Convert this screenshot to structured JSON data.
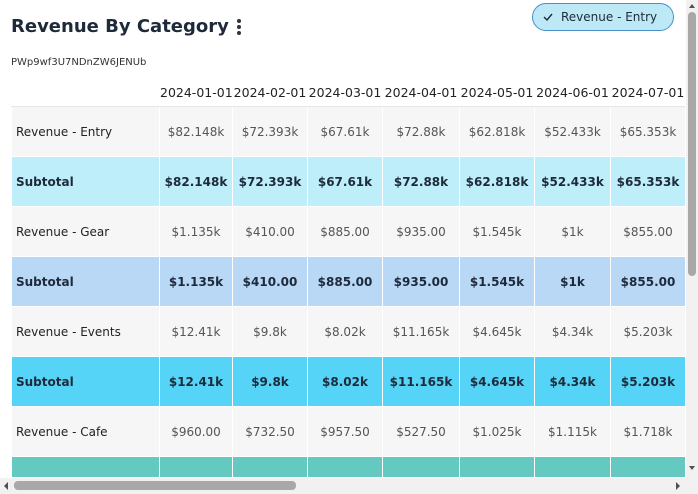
{
  "header": {
    "title": "Revenue By Category",
    "subtitle": "PWp9wf3U7NDnZW6JENUb",
    "filter": "Revenue - Entry"
  },
  "table": {
    "columns": [
      "2024-01-01",
      "2024-02-01",
      "2024-03-01",
      "2024-04-01",
      "2024-05-01",
      "2024-06-01",
      "2024-07-01"
    ],
    "rows": [
      {
        "label": "Revenue - Entry",
        "cells": [
          "$82.148k",
          "$72.393k",
          "$67.61k",
          "$72.88k",
          "$62.818k",
          "$52.433k",
          "$65.353k"
        ]
      },
      {
        "label": "Subtotal",
        "cells": [
          "$82.148k",
          "$72.393k",
          "$67.61k",
          "$72.88k",
          "$62.818k",
          "$52.433k",
          "$65.353k"
        ]
      },
      {
        "label": "Revenue - Gear",
        "cells": [
          "$1.135k",
          "$410.00",
          "$885.00",
          "$935.00",
          "$1.545k",
          "$1k",
          "$855.00"
        ]
      },
      {
        "label": "Subtotal",
        "cells": [
          "$1.135k",
          "$410.00",
          "$885.00",
          "$935.00",
          "$1.545k",
          "$1k",
          "$855.00"
        ]
      },
      {
        "label": "Revenue - Events",
        "cells": [
          "$12.41k",
          "$9.8k",
          "$8.02k",
          "$11.165k",
          "$4.645k",
          "$4.34k",
          "$5.203k"
        ]
      },
      {
        "label": "Subtotal",
        "cells": [
          "$12.41k",
          "$9.8k",
          "$8.02k",
          "$11.165k",
          "$4.645k",
          "$4.34k",
          "$5.203k"
        ]
      },
      {
        "label": "Revenue - Cafe",
        "cells": [
          "$960.00",
          "$732.50",
          "$957.50",
          "$527.50",
          "$1.025k",
          "$1.115k",
          "$1.718k"
        ]
      }
    ]
  }
}
